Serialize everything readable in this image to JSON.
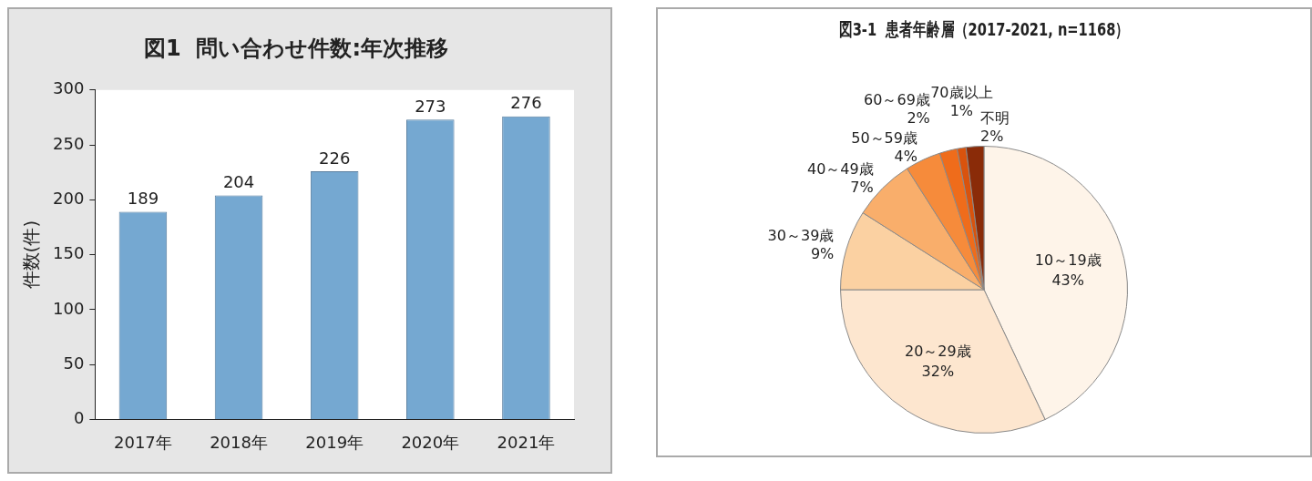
{
  "chart_data": [
    {
      "type": "bar",
      "title": "図1  問い合わせ件数:年次推移",
      "ylabel": "件数(件)",
      "categories": [
        "2017年",
        "2018年",
        "2019年",
        "2020年",
        "2021年"
      ],
      "values": [
        189,
        204,
        226,
        273,
        276
      ],
      "color": "#75a8d1",
      "ylim": [
        0,
        300
      ],
      "yticks": [
        0,
        50,
        100,
        150,
        200,
        250,
        300
      ],
      "grid": false,
      "data_labels": true,
      "legend": false
    },
    {
      "type": "pie",
      "title": "図3-1  患者年齢層（2017-2021, n=1168）",
      "categories": [
        "10～19歳",
        "20～29歳",
        "30～39歳",
        "40～49歳",
        "50～59歳",
        "60～69歳",
        "70歳以上",
        "不明"
      ],
      "values": [
        43,
        32,
        9,
        7,
        4,
        2,
        1,
        2
      ],
      "value_labels": [
        "43%",
        "32%",
        "9%",
        "7%",
        "4%",
        "2%",
        "1%",
        "2%"
      ],
      "colors": [
        "#fef4e9",
        "#fde6cf",
        "#fbd1a2",
        "#f9ae6b",
        "#f68b3b",
        "#ef6c1b",
        "#d9530d",
        "#8a2b08"
      ],
      "data_labels": true,
      "legend": false
    }
  ]
}
